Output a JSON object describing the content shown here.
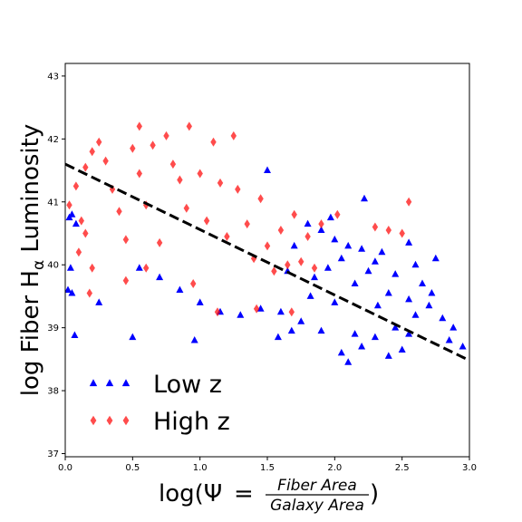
{
  "chart_data": {
    "type": "scatter",
    "title": "",
    "xlabel": {
      "prefix": "log(Ψ",
      "equals": "=",
      "numerator": "Fiber Area",
      "denominator": "Galaxy Area",
      "suffix": ")"
    },
    "ylabel": {
      "before": "log Fiber H",
      "subscript": "α",
      "after": " Luminosity"
    },
    "xlim": [
      0.0,
      3.0
    ],
    "ylim": [
      36.95,
      43.2
    ],
    "xticks": [
      "0.0",
      "0.5",
      "1.0",
      "1.5",
      "2.0",
      "2.5",
      "3.0"
    ],
    "yticks": [
      "37",
      "38",
      "39",
      "40",
      "41",
      "42",
      "43"
    ],
    "grid": false,
    "legend": {
      "position": "lower-left"
    },
    "series": [
      {
        "name": "Low z",
        "marker": "triangle",
        "color": "#0000ff",
        "opacity": 1.0,
        "points": [
          [
            1.8,
            40.65
          ],
          [
            1.9,
            40.55
          ],
          [
            2.0,
            40.4
          ],
          [
            2.1,
            40.3
          ],
          [
            2.2,
            40.25
          ],
          [
            2.35,
            40.2
          ],
          [
            2.3,
            40.05
          ],
          [
            2.25,
            39.9
          ],
          [
            2.05,
            40.1
          ],
          [
            1.95,
            39.95
          ],
          [
            1.85,
            39.8
          ],
          [
            2.15,
            39.7
          ],
          [
            2.4,
            39.55
          ],
          [
            2.55,
            39.45
          ],
          [
            2.7,
            39.35
          ],
          [
            2.6,
            39.2
          ],
          [
            2.45,
            39.0
          ],
          [
            2.3,
            38.85
          ],
          [
            2.2,
            38.7
          ],
          [
            2.05,
            38.6
          ],
          [
            1.9,
            38.95
          ],
          [
            1.75,
            39.1
          ],
          [
            1.6,
            39.25
          ],
          [
            1.45,
            39.3
          ],
          [
            1.3,
            39.2
          ],
          [
            1.15,
            39.25
          ],
          [
            1.0,
            39.4
          ],
          [
            0.85,
            39.6
          ],
          [
            0.7,
            39.8
          ],
          [
            0.55,
            39.95
          ],
          [
            2.22,
            41.05
          ],
          [
            1.97,
            40.75
          ],
          [
            2.55,
            40.35
          ],
          [
            2.75,
            40.1
          ],
          [
            2.8,
            39.15
          ],
          [
            2.95,
            38.7
          ],
          [
            2.4,
            38.55
          ],
          [
            2.1,
            38.45
          ],
          [
            1.58,
            38.85
          ],
          [
            1.5,
            41.5
          ],
          [
            0.96,
            38.8
          ],
          [
            0.5,
            38.85
          ],
          [
            0.07,
            38.88
          ],
          [
            0.02,
            39.6
          ],
          [
            0.05,
            39.55
          ],
          [
            0.25,
            39.4
          ],
          [
            0.08,
            40.65
          ],
          [
            0.03,
            40.75
          ],
          [
            0.05,
            40.8
          ],
          [
            0.04,
            39.95
          ],
          [
            2.65,
            39.7
          ],
          [
            2.85,
            38.8
          ],
          [
            2.88,
            39.0
          ],
          [
            2.5,
            38.65
          ],
          [
            2.15,
            38.9
          ],
          [
            1.7,
            40.3
          ],
          [
            1.65,
            39.9
          ],
          [
            2.45,
            39.85
          ],
          [
            2.6,
            40.0
          ],
          [
            2.72,
            39.55
          ],
          [
            2.0,
            39.4
          ],
          [
            1.82,
            39.5
          ],
          [
            2.32,
            39.35
          ],
          [
            1.68,
            38.95
          ],
          [
            2.55,
            38.9
          ]
        ]
      },
      {
        "name": "High z",
        "marker": "diamond",
        "color": "#ff0000",
        "opacity": 0.7,
        "points": [
          [
            0.03,
            40.95
          ],
          [
            0.08,
            41.25
          ],
          [
            0.12,
            40.7
          ],
          [
            0.15,
            41.55
          ],
          [
            0.2,
            41.8
          ],
          [
            0.25,
            41.95
          ],
          [
            0.3,
            41.65
          ],
          [
            0.35,
            41.2
          ],
          [
            0.4,
            40.85
          ],
          [
            0.45,
            40.4
          ],
          [
            0.5,
            41.85
          ],
          [
            0.55,
            41.45
          ],
          [
            0.6,
            40.95
          ],
          [
            0.65,
            41.9
          ],
          [
            0.7,
            40.35
          ],
          [
            0.55,
            42.2
          ],
          [
            0.75,
            42.05
          ],
          [
            0.8,
            41.6
          ],
          [
            0.85,
            41.35
          ],
          [
            0.9,
            40.9
          ],
          [
            0.92,
            42.2
          ],
          [
            1.0,
            41.45
          ],
          [
            1.05,
            40.7
          ],
          [
            1.1,
            41.95
          ],
          [
            1.15,
            41.3
          ],
          [
            1.2,
            40.45
          ],
          [
            1.25,
            42.05
          ],
          [
            1.28,
            41.2
          ],
          [
            1.35,
            40.65
          ],
          [
            1.4,
            40.1
          ],
          [
            1.45,
            41.05
          ],
          [
            1.5,
            40.3
          ],
          [
            1.55,
            39.9
          ],
          [
            1.6,
            40.55
          ],
          [
            1.65,
            40.0
          ],
          [
            1.7,
            40.8
          ],
          [
            1.75,
            40.05
          ],
          [
            1.8,
            40.45
          ],
          [
            1.85,
            39.95
          ],
          [
            1.9,
            40.65
          ],
          [
            2.02,
            40.8
          ],
          [
            2.3,
            40.6
          ],
          [
            2.4,
            40.55
          ],
          [
            2.5,
            40.5
          ],
          [
            2.55,
            41.0
          ],
          [
            1.13,
            39.25
          ],
          [
            0.95,
            39.7
          ],
          [
            0.6,
            39.95
          ],
          [
            0.45,
            39.75
          ],
          [
            0.2,
            39.95
          ],
          [
            0.1,
            40.2
          ],
          [
            0.18,
            39.55
          ],
          [
            0.15,
            40.5
          ],
          [
            1.42,
            39.3
          ],
          [
            1.68,
            39.25
          ]
        ]
      }
    ],
    "trend_line": {
      "style": "dashed",
      "color": "#000000",
      "points": [
        [
          0.0,
          41.6
        ],
        [
          3.0,
          38.48
        ]
      ]
    }
  }
}
